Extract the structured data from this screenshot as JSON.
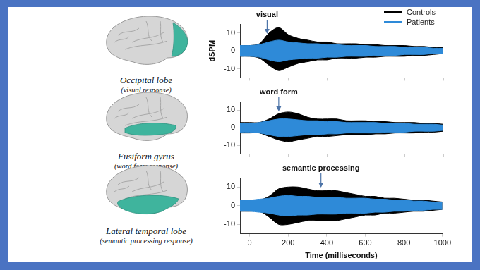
{
  "chart_data": [
    {
      "type": "line",
      "brain_label": "Occipital lobe",
      "brain_caption": "(visual response)",
      "y_label": "dSPM",
      "x": [
        -50,
        0,
        50,
        100,
        150,
        200,
        250,
        300,
        350,
        400,
        450,
        500,
        550,
        600,
        650,
        700,
        750,
        800,
        850,
        900,
        950,
        1000
      ],
      "series": [
        {
          "name": "Controls",
          "color": "#000000",
          "values": [
            3,
            3,
            4,
            10,
            13,
            9,
            7,
            6,
            5,
            5,
            4,
            4,
            4,
            3.5,
            3.5,
            3,
            3,
            3,
            2.5,
            2.5,
            2,
            2
          ],
          "low": [
            -3,
            -3,
            -4,
            -8,
            -11,
            -9,
            -7,
            -6,
            -5,
            -5,
            -4,
            -4,
            -4,
            -3.5,
            -3.5,
            -3,
            -3,
            -3,
            -2.5,
            -2.5,
            -2,
            -1.5
          ]
        },
        {
          "name": "Patients",
          "color": "#2e8ad8",
          "values": [
            3,
            3,
            3.5,
            5,
            6,
            5,
            4.5,
            4,
            4,
            3.5,
            3.5,
            3,
            3,
            3,
            2.5,
            2.5,
            2.5,
            2,
            2,
            2,
            1.5,
            1.5
          ],
          "low": [
            -3,
            -3,
            -3.5,
            -5,
            -6,
            -5,
            -4.5,
            -4,
            -4,
            -3.5,
            -3.5,
            -3,
            -3,
            -3,
            -2.5,
            -2.5,
            -2.5,
            -2,
            -2,
            -2,
            -1.5,
            -1.5
          ]
        }
      ],
      "xlim": [
        -50,
        1000
      ],
      "xticks": [
        0,
        200,
        400,
        600,
        800,
        1000
      ],
      "ylim": [
        -15,
        15
      ],
      "yticks": [
        -10,
        0,
        10
      ],
      "grid": false,
      "tick_labels": "y",
      "legend": "upper right",
      "annotations": [
        {
          "text": "visual",
          "x": 90
        }
      ]
    },
    {
      "type": "line",
      "brain_label": "Fusiform gyrus",
      "brain_caption": "(word form response)",
      "x": [
        -50,
        0,
        50,
        100,
        150,
        200,
        250,
        300,
        350,
        400,
        450,
        500,
        550,
        600,
        650,
        700,
        750,
        800,
        850,
        900,
        950,
        1000
      ],
      "series": [
        {
          "color": "#000000",
          "values": [
            3,
            3,
            3,
            5,
            8,
            9,
            8,
            6,
            5,
            5,
            5,
            4,
            4,
            4,
            3.5,
            3.5,
            3,
            3,
            3,
            2.5,
            2.5,
            2
          ],
          "low": [
            -3,
            -3,
            -3,
            -5,
            -7,
            -8,
            -7,
            -6,
            -5,
            -5,
            -4.5,
            -4,
            -4,
            -4,
            -3.5,
            -3.5,
            -3,
            -3,
            -3,
            -2.5,
            -2.5,
            -2
          ]
        },
        {
          "color": "#2e8ad8",
          "values": [
            2.5,
            2.5,
            3,
            4,
            5,
            5,
            4.5,
            4,
            4,
            3.5,
            3.5,
            3,
            3,
            3,
            3,
            2.5,
            2.5,
            2.5,
            2,
            2,
            2,
            1.5
          ],
          "low": [
            -2.5,
            -2.5,
            -3,
            -4,
            -5,
            -5,
            -4.5,
            -4,
            -4,
            -3.5,
            -3.5,
            -3,
            -3,
            -3,
            -3,
            -2.5,
            -2.5,
            -2.5,
            -2,
            -2,
            -2,
            -1.5
          ]
        }
      ],
      "xlim": [
        -50,
        1000
      ],
      "xticks": [
        0,
        200,
        400,
        600,
        800,
        1000
      ],
      "ylim": [
        -15,
        15
      ],
      "yticks": [
        -10,
        0,
        10
      ],
      "grid": false,
      "tick_labels": "y",
      "annotations": [
        {
          "text": "word form",
          "x": 150
        }
      ]
    },
    {
      "type": "line",
      "brain_label": "Lateral temporal lobe",
      "brain_caption": "(semantic processing response)",
      "x_label": "Time (milliseconds)",
      "x": [
        -50,
        0,
        50,
        100,
        150,
        200,
        250,
        300,
        350,
        400,
        450,
        500,
        550,
        600,
        650,
        700,
        750,
        800,
        850,
        900,
        950,
        1000
      ],
      "series": [
        {
          "color": "#000000",
          "values": [
            3,
            3,
            3,
            5,
            9,
            10,
            10,
            9,
            8,
            8,
            8,
            7,
            6,
            5,
            5,
            4,
            4,
            3.5,
            3,
            3,
            2.5,
            2
          ],
          "low": [
            -3,
            -3,
            -3,
            -6,
            -10,
            -10,
            -9,
            -8,
            -8,
            -8,
            -8,
            -7,
            -6,
            -5,
            -5,
            -4,
            -4,
            -3.5,
            -3,
            -3,
            -2.5,
            -2
          ]
        },
        {
          "color": "#2e8ad8",
          "values": [
            3,
            3,
            3.5,
            4,
            5,
            5.5,
            5,
            5,
            4.5,
            4.5,
            4.5,
            4,
            4,
            4,
            3.5,
            3.5,
            3,
            3,
            2.5,
            2.5,
            2,
            2
          ],
          "low": [
            -3,
            -3,
            -3.5,
            -4,
            -5,
            -5.5,
            -5,
            -5,
            -4.5,
            -4.5,
            -4.5,
            -4,
            -4,
            -4,
            -3.5,
            -3.5,
            -3,
            -3,
            -2.5,
            -2.5,
            -2,
            -2
          ]
        }
      ],
      "xlim": [
        -50,
        1000
      ],
      "xticks": [
        0,
        200,
        400,
        600,
        800,
        1000
      ],
      "ylim": [
        -15,
        15
      ],
      "yticks": [
        -10,
        0,
        10
      ],
      "grid": false,
      "annotations": [
        {
          "text": "semantic processing",
          "x": 370
        }
      ]
    }
  ]
}
